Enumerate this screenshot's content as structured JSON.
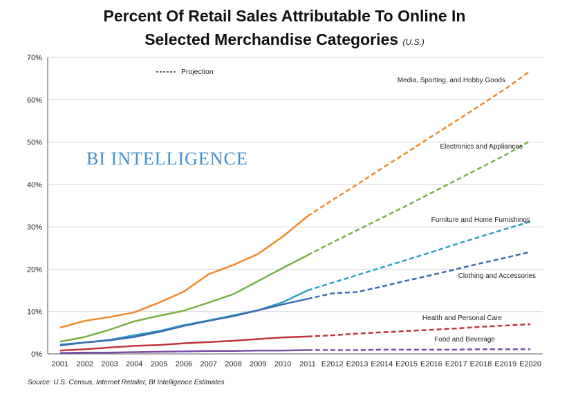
{
  "chart_data": {
    "type": "line",
    "title_line1": "Percent Of Retail Sales Attributable To Online In",
    "title_line2": "Selected Merchandise Categories",
    "title_suffix": "(U.S.)",
    "categories": [
      "2001",
      "2002",
      "2003",
      "2004",
      "2005",
      "2006",
      "2007",
      "2008",
      "2009",
      "2010",
      "2011",
      "E2012",
      "E2013",
      "E2014",
      "E2015",
      "E2016",
      "E2017",
      "E2018",
      "E2019",
      "E2020"
    ],
    "y_ticks": [
      "0%",
      "10%",
      "20%",
      "30%",
      "40%",
      "50%",
      "60%",
      "70%"
    ],
    "ylim": [
      0,
      70
    ],
    "grid": true,
    "projection_start_index": 10,
    "legend": {
      "label": "Projection",
      "placement": "top-left"
    },
    "watermark": "BI INTELLIGENCE",
    "source": "Source: U.S. Census, Internet Retailer, BI Intelligence Estimates",
    "series": [
      {
        "name": "Media, Sporting, and Hobby Goods",
        "color": "#ef8a2b",
        "values": [
          6.2,
          7.8,
          8.7,
          9.8,
          12.1,
          14.7,
          18.8,
          21.0,
          23.6,
          27.7,
          32.5,
          36.3,
          40.0,
          43.8,
          47.5,
          51.3,
          55.0,
          58.8,
          62.6,
          66.8
        ]
      },
      {
        "name": "Electronics and Appliances",
        "color": "#77b045",
        "values": [
          2.9,
          4.0,
          5.7,
          7.7,
          9.0,
          10.2,
          12.1,
          14.1,
          17.2,
          20.3,
          23.3,
          26.3,
          29.2,
          32.1,
          35.0,
          38.0,
          41.0,
          44.0,
          47.0,
          50.3
        ]
      },
      {
        "name": "Furniture and Home Furnishings",
        "color": "#2ba0c4",
        "values": [
          2.2,
          2.7,
          3.3,
          4.4,
          5.4,
          6.8,
          7.9,
          9.1,
          10.3,
          12.2,
          15.0,
          16.8,
          18.6,
          20.4,
          22.2,
          24.0,
          25.9,
          27.7,
          29.5,
          31.2
        ]
      },
      {
        "name": "Clothing and Accessories",
        "color": "#3d6ab4",
        "values": [
          2.0,
          2.7,
          3.2,
          4.0,
          5.2,
          6.6,
          7.8,
          8.9,
          10.3,
          11.7,
          13.0,
          14.3,
          14.6,
          15.9,
          17.3,
          18.6,
          20.0,
          21.4,
          22.7,
          24.1
        ]
      },
      {
        "name": "Health and Personal Care",
        "color": "#c0343c",
        "values": [
          0.8,
          1.1,
          1.5,
          1.9,
          2.1,
          2.5,
          2.8,
          3.1,
          3.5,
          3.9,
          4.1,
          4.4,
          4.8,
          5.1,
          5.4,
          5.7,
          6.0,
          6.4,
          6.7,
          7.0
        ]
      },
      {
        "name": "Food and Beverage",
        "color": "#7a4ea5",
        "values": [
          0.2,
          0.3,
          0.3,
          0.4,
          0.5,
          0.6,
          0.7,
          0.7,
          0.8,
          0.8,
          0.9,
          0.9,
          0.9,
          1.0,
          1.0,
          1.0,
          1.0,
          1.1,
          1.1,
          1.1
        ]
      }
    ]
  }
}
